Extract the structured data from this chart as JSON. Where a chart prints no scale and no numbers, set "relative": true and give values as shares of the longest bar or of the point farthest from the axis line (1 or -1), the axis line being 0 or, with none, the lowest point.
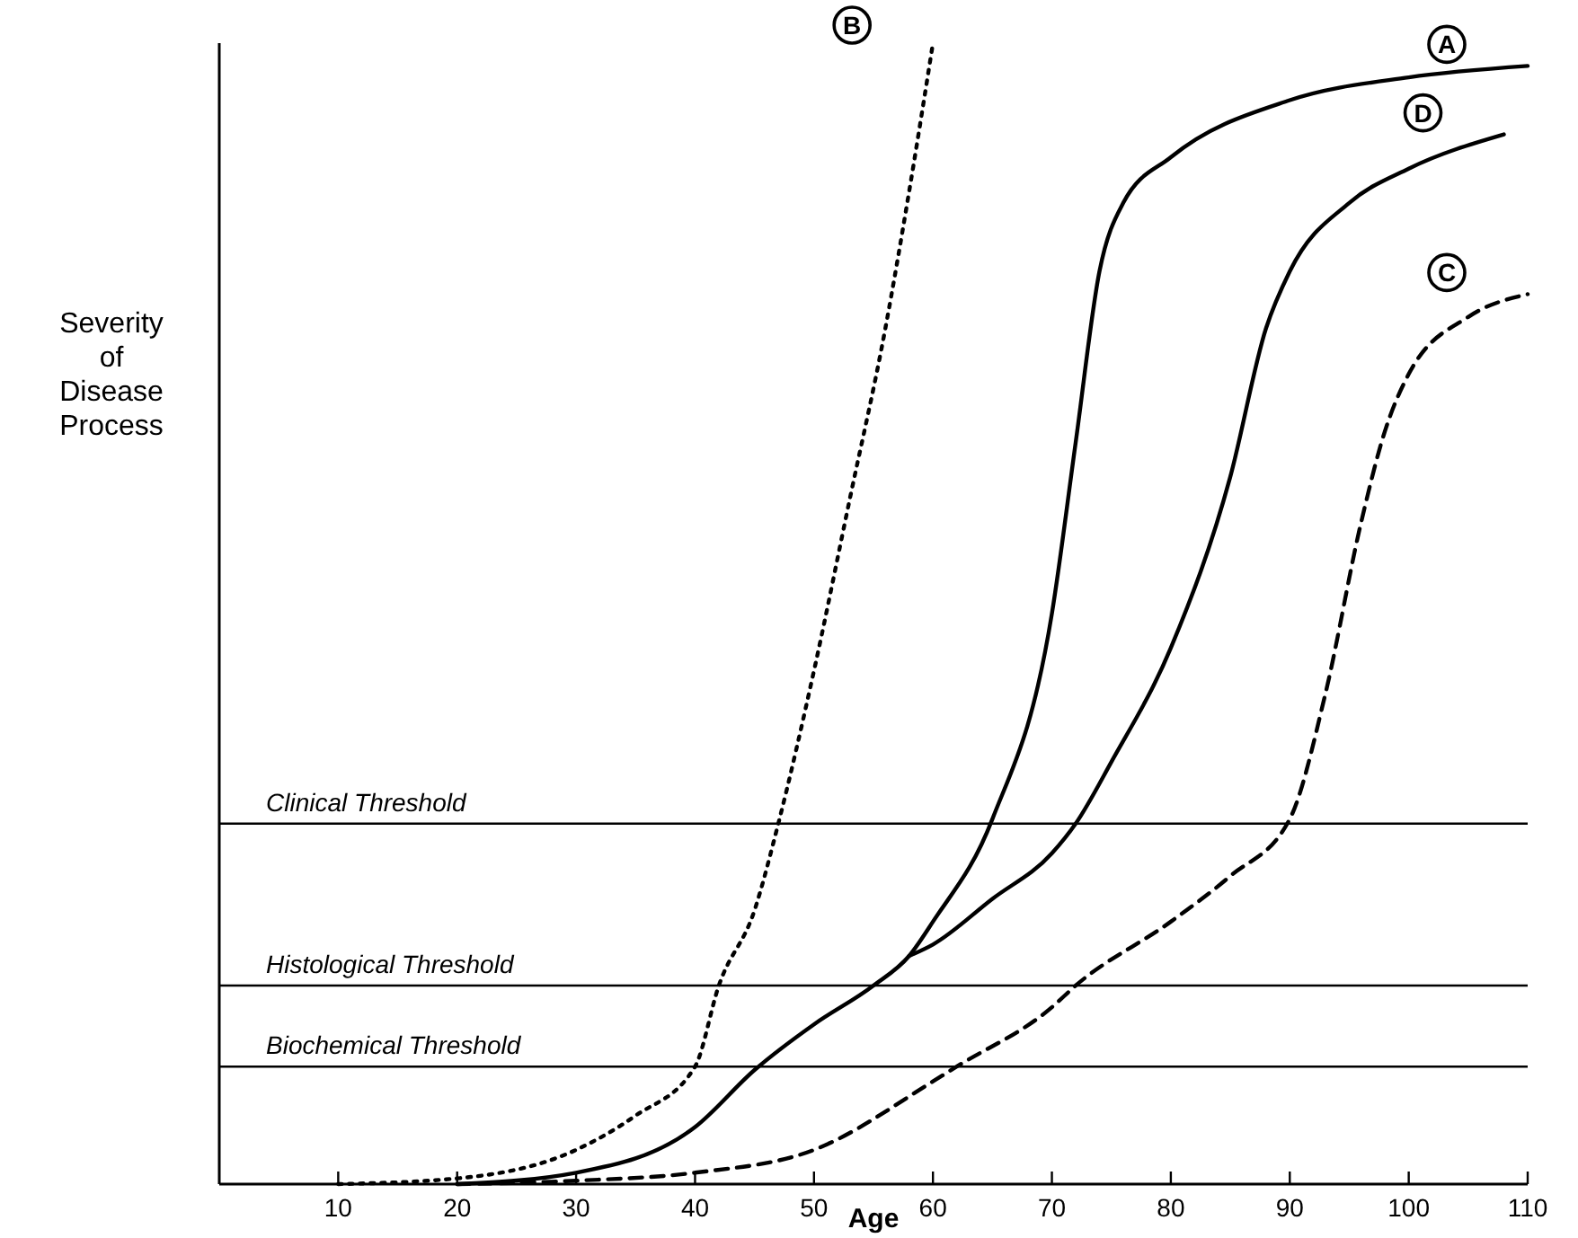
{
  "chart_data": {
    "type": "line",
    "relative": true,
    "xlabel": "Age",
    "ylabel": "Severity of Disease Process",
    "xlim": [
      0,
      110
    ],
    "xticks": [
      10,
      20,
      30,
      40,
      50,
      60,
      70,
      80,
      90,
      100,
      110
    ],
    "series": [
      {
        "name": "A",
        "color": "#000000",
        "line_style": "solid",
        "x": [
          20,
          30,
          40,
          45,
          50,
          55,
          58,
          60,
          65,
          70,
          72,
          74,
          76,
          80,
          90,
          100,
          110
        ],
        "values": [
          0,
          0.01,
          0.05,
          0.1,
          0.14,
          0.174,
          0.2,
          0.23,
          0.32,
          0.5,
          0.65,
          0.8,
          0.86,
          0.9,
          0.95,
          0.97,
          0.98
        ]
      },
      {
        "name": "B",
        "color": "#000000",
        "line_style": "dotted",
        "x": [
          10,
          20,
          30,
          35,
          40,
          42,
          45,
          47,
          50,
          53,
          56,
          58,
          60
        ],
        "values": [
          0,
          0.005,
          0.03,
          0.06,
          0.103,
          0.174,
          0.24,
          0.316,
          0.45,
          0.6,
          0.75,
          0.87,
          1
        ]
      },
      {
        "name": "C",
        "color": "#000000",
        "line_style": "dashed",
        "x": [
          20,
          30,
          40,
          50,
          60,
          62,
          70,
          72,
          80,
          85,
          90,
          93,
          96,
          98,
          100,
          105,
          110
        ],
        "values": [
          0,
          0.003,
          0.01,
          0.03,
          0.09,
          0.103,
          0.155,
          0.174,
          0.23,
          0.27,
          0.32,
          0.43,
          0.58,
          0.66,
          0.71,
          0.76,
          0.78
        ]
      },
      {
        "name": "D",
        "color": "#000000",
        "line_style": "solid",
        "x": [
          58,
          60,
          65,
          70,
          72,
          75,
          80,
          85,
          88,
          90,
          95,
          100,
          108
        ],
        "values": [
          0.2,
          0.21,
          0.25,
          0.29,
          0.316,
          0.37,
          0.47,
          0.62,
          0.75,
          0.8,
          0.86,
          0.89,
          0.92
        ]
      }
    ],
    "ref_lines": [
      {
        "axis": "y",
        "value": 0.316,
        "label": "Clinical Threshold",
        "color": "#000000"
      },
      {
        "axis": "y",
        "value": 0.174,
        "label": "Histological Threshold",
        "color": "#000000"
      },
      {
        "axis": "y",
        "value": 0.103,
        "label": "Biochemical Threshold",
        "color": "#000000"
      }
    ]
  }
}
